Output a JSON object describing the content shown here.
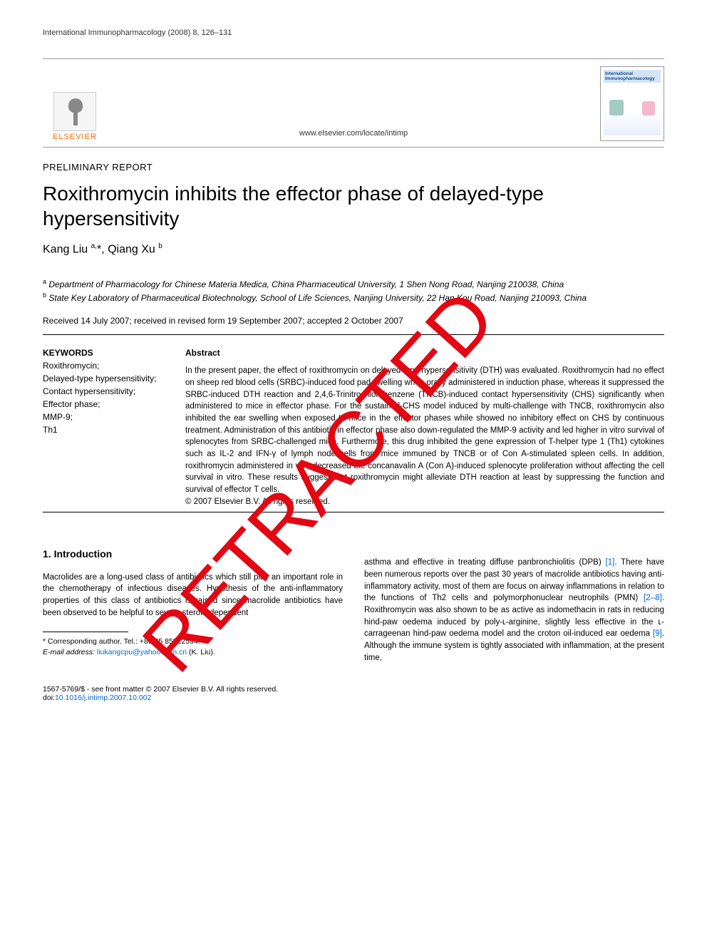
{
  "header": {
    "running_head": "International Immunopharmacology (2008) 8, 126–131",
    "journal_url": "www.elsevier.com/locate/intimp",
    "publisher_name": "ELSEVIER",
    "journal_cover_title": "International Immunopharmacology"
  },
  "article": {
    "report_type": "PRELIMINARY REPORT",
    "title": "Roxithromycin inhibits the effector phase of delayed-type hypersensitivity",
    "authors_html": "Kang Liu <sup>a,</sup>*, Qiang Xu <sup>b</sup>",
    "affiliation_a": "Department of Pharmacology for Chinese Materia Medica, China Pharmaceutical University, 1 Shen Nong Road, Nanjing 210038, China",
    "affiliation_b": "State Key Laboratory of Pharmaceutical Biotechnology, School of Life Sciences, Nanjing University, 22 Han Kou Road, Nanjing 210093, China",
    "dates": "Received 14 July 2007; received in revised form 19 September 2007; accepted 2 October 2007"
  },
  "keywords": {
    "heading": "KEYWORDS",
    "items": "Roxithromycin;\nDelayed-type hypersensitivity;\nContact hypersensitivity;\nEffector phase;\nMMP-9;\nTh1"
  },
  "abstract": {
    "heading": "Abstract",
    "text": "In the present paper, the effect of roxithromycin on delayed-type hypersensitivity (DTH) was evaluated. Roxithromycin had no effect on sheep red blood cells (SRBC)-induced food pad swelling when orally administered in induction phase, whereas it suppressed the SRBC-induced DTH reaction and 2,4,6-Trinitrochlorobenzene (TNCB)-induced contact hypersensitivity (CHS) significantly when administered to mice in effector phase. For the sustained-CHS model induced by multi-challenge with TNCB, roxithromycin also inhibited the ear swelling when exposed to mice in the effector phases while showed no inhibitory effect on CHS by continuous treatment. Administration of this antibiotic in effector phase also down-regulated the MMP-9 activity and led higher in vitro survival of splenocytes from SRBC-challenged mice. Furthermore, this drug inhibited the gene expression of T-helper type 1 (Th1) cytokines such as IL-2 and IFN-γ of lymph node cells from mice immuned by TNCB or of Con A-stimulated spleen cells. In addition, roxithromycin administered in vivo decreased the concanavalin A (Con A)-induced splenocyte proliferation without affecting the cell survival in vitro. These results suggest that roxithromycin might alleviate DTH reaction at least by suppressing the function and survival of effector T cells.",
    "copyright": "© 2007 Elsevier B.V. All rights reserved."
  },
  "section1": {
    "heading": "1. Introduction",
    "col1": "Macrolides are a long-used class of antibiotics which still play an important role in the chemotherapy of infectious diseases. Hypothesis of the anti-inflammatory properties of this class of antibiotics is raised since macrolide antibiotics have been observed to be helpful to severe steroid-dependent",
    "col2_part1": "asthma and effective in treating diffuse panbronchiolitis (DPB) ",
    "col2_ref1": "[1]",
    "col2_part2": ". There have been numerous reports over the past 30 years of macrolide antibiotics having anti-inflammatory activity, most of them are focus on airway inflammations in relation to the functions of Th2 cells and polymorphonuclear neutrophils (PMN) ",
    "col2_ref2": "[2–8]",
    "col2_part3": ". Roxithromycin was also shown to be as active as indomethacin in rats in reducing hind-paw oedema induced by poly-ʟ-arginine, slightly less effective in the ʟ-carrageenan hind-paw oedema model and the croton oil-induced ear oedema ",
    "col2_ref3": "[9]",
    "col2_part4": ". Although the immune system is tightly associated with inflammation, at the present time,"
  },
  "footnote": {
    "corr": "* Corresponding author. Tel.: +86 25 85322594.",
    "email_label": "E-mail address:",
    "email": "liukangcpu@yahoo.com.cn",
    "email_suffix": " (K. Liu)."
  },
  "footer": {
    "copyright": "1567-5769/$ - see front matter © 2007 Elsevier B.V. All rights reserved.",
    "doi_label": "doi:",
    "doi": "10.1016/j.intimp.2007.10.002"
  },
  "watermark": {
    "text": "RETRACTED",
    "color": "#e30613",
    "fontsize": 110,
    "rotation": -48
  }
}
